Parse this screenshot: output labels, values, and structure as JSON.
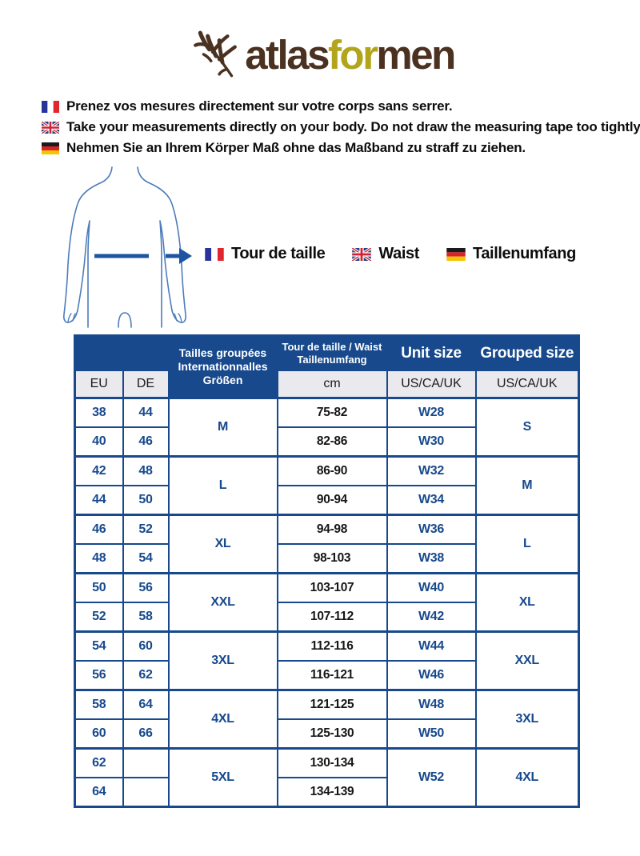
{
  "logo": {
    "part1": "atlas",
    "part2": "for",
    "part3": "men"
  },
  "instructions": [
    {
      "flag": "fr",
      "text": "Prenez vos mesures directement sur votre corps sans serrer."
    },
    {
      "flag": "gb",
      "text": "Take your measurements directly on your body. Do not draw the measuring tape too tightly."
    },
    {
      "flag": "de",
      "text": "Nehmen Sie an Ihrem Körper Maß ohne das Maßband zu straff zu ziehen."
    }
  ],
  "measure_labels": [
    {
      "flag": "fr",
      "text": "Tour de taille"
    },
    {
      "flag": "gb",
      "text": "Waist"
    },
    {
      "flag": "de",
      "text": "Taillenumfang"
    }
  ],
  "table": {
    "header": {
      "grouped_title_lines": [
        "Tailles groupées",
        "Internationnalles",
        "Größen"
      ],
      "waist_title_lines": [
        "Tour de taille / Waist",
        "Taillenumfang"
      ],
      "unit_size_label": "Unit size",
      "grouped_size_label": "Grouped size",
      "sub_eu": "EU",
      "sub_de": "DE",
      "sub_cm": "cm",
      "sub_unit": "US/CA/UK",
      "sub_grouped": "US/CA/UK"
    },
    "groups": [
      {
        "group": "M",
        "grouped": "S",
        "rows": [
          {
            "eu": "38",
            "de": "44",
            "cm": "75-82",
            "unit": "W28"
          },
          {
            "eu": "40",
            "de": "46",
            "cm": "82-86",
            "unit": "W30"
          }
        ]
      },
      {
        "group": "L",
        "grouped": "M",
        "rows": [
          {
            "eu": "42",
            "de": "48",
            "cm": "86-90",
            "unit": "W32"
          },
          {
            "eu": "44",
            "de": "50",
            "cm": "90-94",
            "unit": "W34"
          }
        ]
      },
      {
        "group": "XL",
        "grouped": "L",
        "rows": [
          {
            "eu": "46",
            "de": "52",
            "cm": "94-98",
            "unit": "W36"
          },
          {
            "eu": "48",
            "de": "54",
            "cm": "98-103",
            "unit": "W38"
          }
        ]
      },
      {
        "group": "XXL",
        "grouped": "XL",
        "rows": [
          {
            "eu": "50",
            "de": "56",
            "cm": "103-107",
            "unit": "W40"
          },
          {
            "eu": "52",
            "de": "58",
            "cm": "107-112",
            "unit": "W42"
          }
        ]
      },
      {
        "group": "3XL",
        "grouped": "XXL",
        "rows": [
          {
            "eu": "54",
            "de": "60",
            "cm": "112-116",
            "unit": "W44"
          },
          {
            "eu": "56",
            "de": "62",
            "cm": "116-121",
            "unit": "W46"
          }
        ]
      },
      {
        "group": "4XL",
        "grouped": "3XL",
        "rows": [
          {
            "eu": "58",
            "de": "64",
            "cm": "121-125",
            "unit": "W48"
          },
          {
            "eu": "60",
            "de": "66",
            "cm": "125-130",
            "unit": "W50"
          }
        ]
      },
      {
        "group": "5XL",
        "grouped": "4XL",
        "unit_span": "W52",
        "rows": [
          {
            "eu": "62",
            "de": "",
            "cm": "130-134"
          },
          {
            "eu": "64",
            "de": "",
            "cm": "134-139"
          }
        ]
      }
    ]
  },
  "colors": {
    "table_blue": "#17498c",
    "subhead_bg": "#e9e9ee",
    "logo_brown": "#4a3120",
    "logo_olive": "#b2a51c",
    "figure_outline": "#4d7cba",
    "figure_line": "#1d55a3",
    "flag_fr": [
      "#28339c",
      "#ffffff",
      "#e1262d"
    ],
    "flag_de": [
      "#1a1a1a",
      "#d8232a",
      "#f6c500"
    ],
    "flag_gb": [
      "#263c7c",
      "#ffffff",
      "#cf2233"
    ]
  }
}
